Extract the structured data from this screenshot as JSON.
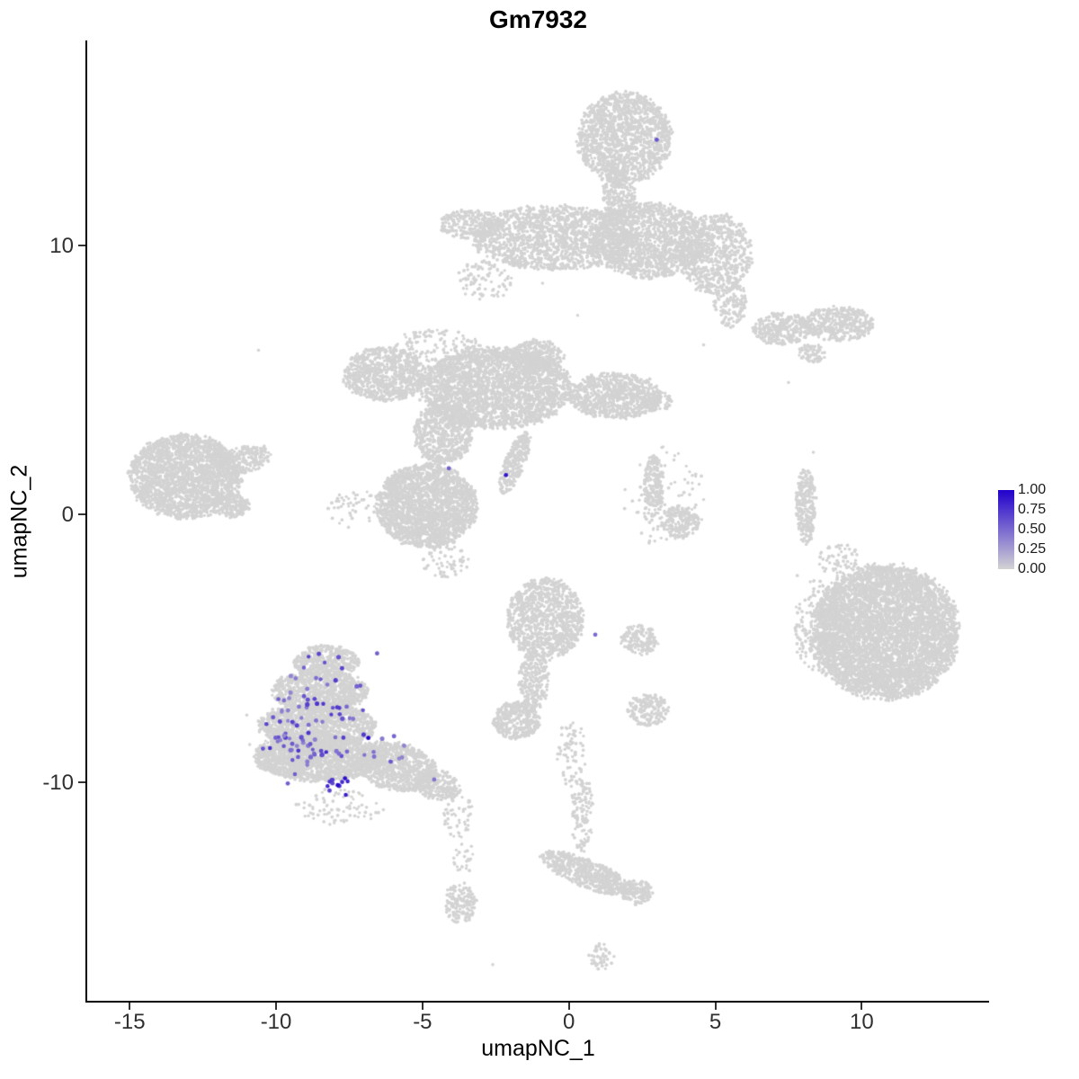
{
  "chart_data": {
    "type": "scatter",
    "title": "Gm7932",
    "xlabel": "umapNC_1",
    "ylabel": "umapNC_2",
    "xlim": [
      -16.45,
      14.35
    ],
    "ylim": [
      -18.15,
      17.65
    ],
    "x_ticks": [
      -15,
      -10,
      -5,
      0,
      5,
      10
    ],
    "y_ticks": [
      10,
      0,
      -10
    ],
    "grid": false,
    "legend_position": "right",
    "point_color_low": "#d3d3d3",
    "point_color_high": "#2100cc",
    "legend": {
      "labels": [
        "1.00",
        "0.75",
        "0.50",
        "0.25",
        "0.00"
      ],
      "low": "#d3d3d3",
      "high": "#2100cc"
    },
    "clusters": [
      {
        "name": "top-head",
        "cx": 1.9,
        "cy": 14.0,
        "rx": 1.6,
        "ry": 1.7,
        "n": 1500
      },
      {
        "name": "top-neck",
        "cx": 1.7,
        "cy": 11.9,
        "rx": 0.55,
        "ry": 0.9,
        "n": 220
      },
      {
        "name": "top-band-left",
        "cx": -0.5,
        "cy": 10.3,
        "rx": 2.8,
        "ry": 1.2,
        "n": 1500
      },
      {
        "name": "top-band-right",
        "cx": 2.7,
        "cy": 10.2,
        "rx": 2.0,
        "ry": 1.4,
        "n": 1500
      },
      {
        "name": "top-band-right-lobe",
        "cx": 5.0,
        "cy": 9.7,
        "rx": 1.25,
        "ry": 1.5,
        "n": 700
      },
      {
        "name": "top-band-left-tail",
        "cx": -3.3,
        "cy": 10.8,
        "rx": 1.1,
        "ry": 0.55,
        "n": 250
      },
      {
        "name": "top-right-arm",
        "cx": 5.5,
        "cy": 7.9,
        "rx": 0.55,
        "ry": 0.95,
        "n": 150
      },
      {
        "name": "top-band-under-sparse",
        "cx": -2.9,
        "cy": 8.7,
        "rx": 0.95,
        "ry": 0.75,
        "n": 90
      },
      {
        "name": "right-upper-strip-1",
        "cx": 7.3,
        "cy": 6.9,
        "rx": 1.0,
        "ry": 0.6,
        "n": 300
      },
      {
        "name": "right-upper-strip-2",
        "cx": 9.2,
        "cy": 7.1,
        "rx": 1.2,
        "ry": 0.65,
        "n": 380
      },
      {
        "name": "right-upper-strip-3",
        "cx": 8.3,
        "cy": 6.0,
        "rx": 0.5,
        "ry": 0.35,
        "n": 70
      },
      {
        "name": "center-main",
        "cx": -2.5,
        "cy": 4.7,
        "rx": 2.6,
        "ry": 1.5,
        "n": 2600
      },
      {
        "name": "center-left-arm",
        "cx": -6.3,
        "cy": 5.2,
        "rx": 1.4,
        "ry": 1.0,
        "n": 800
      },
      {
        "name": "center-left-blob",
        "cx": -4.85,
        "cy": 0.3,
        "rx": 1.7,
        "ry": 1.55,
        "n": 2200
      },
      {
        "name": "center-connector",
        "cx": -4.3,
        "cy": 3.0,
        "rx": 1.0,
        "ry": 1.15,
        "n": 650
      },
      {
        "name": "center-diagonal-streak",
        "cx": -1.85,
        "cy": 1.9,
        "rx": 0.35,
        "ry": 1.2,
        "rot": -0.35,
        "n": 260
      },
      {
        "name": "center-right-arm",
        "cx": 1.6,
        "cy": 4.4,
        "rx": 1.6,
        "ry": 0.85,
        "n": 800
      },
      {
        "name": "center-right-tip",
        "cx": 3.0,
        "cy": 4.2,
        "rx": 0.5,
        "ry": 0.4,
        "n": 90
      },
      {
        "name": "center-top-bumps",
        "cx": -1.1,
        "cy": 5.9,
        "rx": 0.95,
        "ry": 0.6,
        "n": 300
      },
      {
        "name": "center-upper-sparse",
        "cx": -4.5,
        "cy": 6.3,
        "rx": 1.5,
        "ry": 0.6,
        "n": 120
      },
      {
        "name": "center-left-sparse",
        "cx": -7.3,
        "cy": 0.2,
        "rx": 1.0,
        "ry": 0.7,
        "n": 50
      },
      {
        "name": "center-below-sparse",
        "cx": -4.2,
        "cy": -1.8,
        "rx": 0.8,
        "ry": 0.6,
        "n": 60
      },
      {
        "name": "left-cluster",
        "cx": -13.1,
        "cy": 1.4,
        "rx": 1.9,
        "ry": 1.55,
        "n": 2200
      },
      {
        "name": "left-cluster-tip",
        "cx": -11.1,
        "cy": 2.0,
        "rx": 1.0,
        "ry": 0.5,
        "rot": 0.3,
        "n": 220
      },
      {
        "name": "left-cluster-bump",
        "cx": -11.5,
        "cy": 0.3,
        "rx": 0.6,
        "ry": 0.45,
        "n": 150
      },
      {
        "name": "mid-right-strip",
        "cx": 2.9,
        "cy": 1.0,
        "rx": 0.35,
        "ry": 1.2,
        "n": 200
      },
      {
        "name": "mid-right-blob",
        "cx": 3.8,
        "cy": -0.3,
        "rx": 0.65,
        "ry": 0.6,
        "n": 180
      },
      {
        "name": "mid-right-halo",
        "cx": 3.3,
        "cy": 0.6,
        "rx": 1.4,
        "ry": 1.9,
        "n": 90
      },
      {
        "name": "right-sliver",
        "cx": 8.1,
        "cy": 0.3,
        "rx": 0.35,
        "ry": 1.4,
        "n": 280
      },
      {
        "name": "right-big",
        "cx": 10.8,
        "cy": -4.4,
        "rx": 2.5,
        "ry": 2.5,
        "n": 5200
      },
      {
        "name": "right-big-left-edge",
        "cx": 8.6,
        "cy": -4.2,
        "rx": 0.9,
        "ry": 1.8,
        "n": 220
      },
      {
        "name": "right-big-above-sparse",
        "cx": 9.2,
        "cy": -1.7,
        "rx": 0.7,
        "ry": 0.6,
        "n": 60
      },
      {
        "name": "center-lower",
        "cx": -0.8,
        "cy": -3.9,
        "rx": 1.3,
        "ry": 1.5,
        "n": 1000
      },
      {
        "name": "center-lower-tail",
        "cx": -1.2,
        "cy": -6.2,
        "rx": 0.5,
        "ry": 1.1,
        "n": 260
      },
      {
        "name": "center-lower-foot",
        "cx": -1.8,
        "cy": -7.7,
        "rx": 0.8,
        "ry": 0.7,
        "n": 350
      },
      {
        "name": "center-lower-right-1",
        "cx": 2.4,
        "cy": -4.7,
        "rx": 0.65,
        "ry": 0.55,
        "n": 150
      },
      {
        "name": "center-lower-right-2",
        "cx": 2.7,
        "cy": -7.3,
        "rx": 0.7,
        "ry": 0.6,
        "n": 170
      },
      {
        "name": "bottomleft-apex",
        "cx": -8.3,
        "cy": -5.5,
        "rx": 1.1,
        "ry": 0.6,
        "n": 450
      },
      {
        "name": "bottomleft-upper",
        "cx": -8.5,
        "cy": -6.6,
        "rx": 1.6,
        "ry": 0.8,
        "n": 900
      },
      {
        "name": "bottomleft-mid",
        "cx": -8.6,
        "cy": -7.9,
        "rx": 2.0,
        "ry": 0.85,
        "n": 1300
      },
      {
        "name": "bottomleft-base",
        "cx": -8.5,
        "cy": -9.1,
        "rx": 2.2,
        "ry": 0.85,
        "n": 1500
      },
      {
        "name": "bottomleft-corner",
        "cx": -9.8,
        "cy": -9.0,
        "rx": 0.9,
        "ry": 0.7,
        "n": 300
      },
      {
        "name": "bottomleft-ext",
        "cx": -5.9,
        "cy": -9.4,
        "rx": 1.4,
        "ry": 0.9,
        "rot": -0.26,
        "n": 800
      },
      {
        "name": "bottomleft-ext-tip",
        "cx": -4.5,
        "cy": -10.1,
        "rx": 0.8,
        "ry": 0.55,
        "rot": -0.35,
        "n": 250
      },
      {
        "name": "bottomleft-trail",
        "cx": -3.8,
        "cy": -11.2,
        "rx": 0.5,
        "ry": 0.9,
        "n": 60
      },
      {
        "name": "bottomleft-below-sparse",
        "cx": -7.8,
        "cy": -10.9,
        "rx": 1.5,
        "ry": 0.7,
        "n": 80
      },
      {
        "name": "bottom-small-blob",
        "cx": -3.7,
        "cy": -14.5,
        "rx": 0.55,
        "ry": 0.75,
        "n": 150
      },
      {
        "name": "bottom-small-trail",
        "cx": -3.6,
        "cy": -12.8,
        "rx": 0.4,
        "ry": 0.6,
        "n": 25
      },
      {
        "name": "bottom-diagonal",
        "cx": 0.6,
        "cy": -13.4,
        "rx": 1.7,
        "ry": 0.5,
        "rot": -0.42,
        "n": 600
      },
      {
        "name": "bottom-diagonal-knob",
        "cx": 2.3,
        "cy": -14.1,
        "rx": 0.55,
        "ry": 0.45,
        "n": 160
      },
      {
        "name": "bottom-trail-upper",
        "cx": 0.45,
        "cy": -11.2,
        "rx": 0.4,
        "ry": 1.4,
        "n": 120
      },
      {
        "name": "bottom-trail-top",
        "cx": 0.1,
        "cy": -8.9,
        "rx": 0.5,
        "ry": 1.2,
        "n": 70
      },
      {
        "name": "bottom-tiny",
        "cx": 1.1,
        "cy": -16.5,
        "rx": 0.45,
        "ry": 0.55,
        "n": 45
      }
    ],
    "noise_points": [
      [
        -10.6,
        6.1
      ],
      [
        7.5,
        4.9
      ],
      [
        8.35,
        2.3
      ],
      [
        7.8,
        -2.3
      ],
      [
        -2.6,
        -16.8
      ],
      [
        -11.0,
        -7.5
      ],
      [
        -10.9,
        -8.6
      ],
      [
        0.3,
        7.4
      ],
      [
        4.6,
        6.3
      ],
      [
        -0.9,
        8.6
      ]
    ],
    "expression_blobs": [
      {
        "cx": -8.6,
        "cy": -7.5,
        "rx": 1.9,
        "ry": 1.7,
        "n": 70,
        "vmin": 0.35,
        "vmax": 0.75
      },
      {
        "cx": -9.4,
        "cy": -9.0,
        "rx": 1.1,
        "ry": 0.8,
        "n": 18,
        "vmin": 0.4,
        "vmax": 0.8
      },
      {
        "cx": -7.75,
        "cy": -10.1,
        "rx": 0.5,
        "ry": 0.4,
        "n": 12,
        "vmin": 0.55,
        "vmax": 0.95
      },
      {
        "cx": -6.1,
        "cy": -8.8,
        "rx": 0.9,
        "ry": 0.6,
        "n": 9,
        "vmin": 0.35,
        "vmax": 0.6
      },
      {
        "cx": -8.0,
        "cy": -5.6,
        "rx": 1.3,
        "ry": 0.5,
        "n": 6,
        "vmin": 0.4,
        "vmax": 0.7
      }
    ],
    "highlighted_points": [
      {
        "x": 3.0,
        "y": 13.95,
        "v": 0.6
      },
      {
        "x": -4.1,
        "y": 1.7,
        "v": 0.55
      },
      {
        "x": -2.15,
        "y": 1.45,
        "v": 0.9
      },
      {
        "x": 0.9,
        "y": -4.5,
        "v": 0.5
      },
      {
        "x": -6.85,
        "y": -8.35,
        "v": 1.0
      },
      {
        "x": -6.55,
        "y": -5.2,
        "v": 0.55
      },
      {
        "x": -10.45,
        "y": -8.75,
        "v": 0.6
      },
      {
        "x": -9.6,
        "y": -10.05,
        "v": 0.55
      },
      {
        "x": -4.6,
        "y": -9.9,
        "v": 0.45
      }
    ]
  }
}
